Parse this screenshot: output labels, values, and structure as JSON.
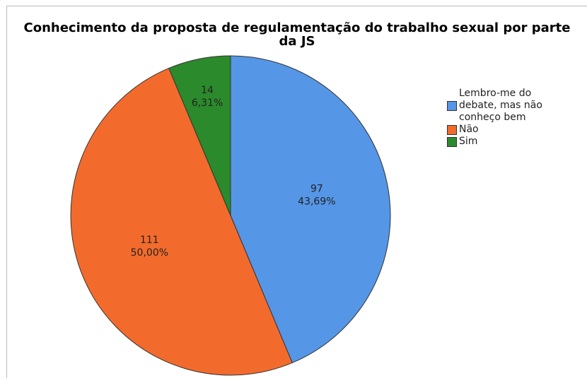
{
  "chart_data": {
    "type": "pie",
    "title": "Conhecimento da proposta de regulamentação do trabalho sexual por parte da JS",
    "categories": [
      "Lembro-me do debate, mas não conheço bem",
      "Não",
      "Sim"
    ],
    "values": [
      97,
      111,
      14
    ],
    "percent_values": [
      43.69,
      50.0,
      6.31
    ],
    "percent_labels": [
      "43,69%",
      "50,00%",
      "6,31%"
    ],
    "colors": [
      "#5596e6",
      "#f26b2c",
      "#2b8a2b"
    ]
  }
}
